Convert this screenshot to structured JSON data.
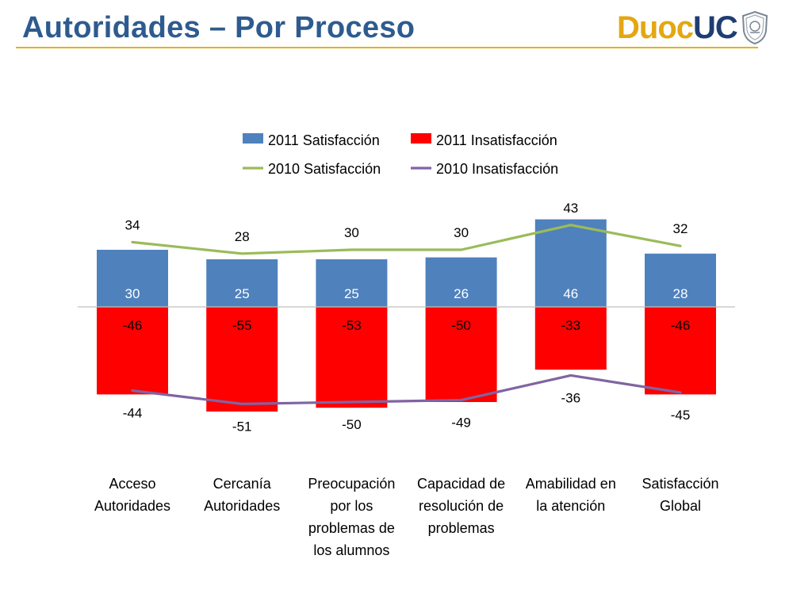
{
  "page": {
    "title": "Autoridades – Por Proceso",
    "title_color": "#2e5b8f",
    "rule_color": "#e3b21a"
  },
  "logo": {
    "text_a": "Duoc",
    "text_b": "UC",
    "color_a": "#e3a712",
    "color_b": "#1f3d73"
  },
  "chart_data": {
    "type": "bar",
    "categories": [
      [
        "Acceso",
        "Autoridades"
      ],
      [
        "Cercanía",
        "Autoridades"
      ],
      [
        "Preocupación",
        "por los",
        "problemas de",
        "los alumnos"
      ],
      [
        "Capacidad de",
        "resolución de",
        "problemas"
      ],
      [
        "Amabilidad en",
        "la atención"
      ],
      [
        "Satisfacción",
        "Global"
      ]
    ],
    "series": [
      {
        "name": "2011 Satisfacción",
        "kind": "bar",
        "color": "#4f81bd",
        "values": [
          30,
          25,
          25,
          26,
          46,
          28
        ],
        "labels": [
          "30",
          "25",
          "25",
          "26",
          "46",
          "28"
        ]
      },
      {
        "name": "2011 Insatisfacción",
        "kind": "bar",
        "color": "#ff0000",
        "values": [
          -46,
          -55,
          -53,
          -50,
          -33,
          -46
        ],
        "labels": [
          "-46",
          "-55",
          "-53",
          "-50",
          "-33",
          "-46"
        ]
      },
      {
        "name": "2010 Satisfacción",
        "kind": "line",
        "color": "#9bbb59",
        "values": [
          34,
          28,
          30,
          30,
          43,
          32
        ],
        "labels": [
          "34",
          "28",
          "30",
          "30",
          "43",
          "32"
        ]
      },
      {
        "name": "2010 Insatisfacción",
        "kind": "line",
        "color": "#8064a2",
        "values": [
          -44,
          -51,
          -50,
          -49,
          -36,
          -45
        ],
        "labels": [
          "-44",
          "-51",
          "-50",
          "-49",
          "-36",
          "-45"
        ]
      }
    ],
    "legend_position": "top",
    "gridlines": false
  }
}
